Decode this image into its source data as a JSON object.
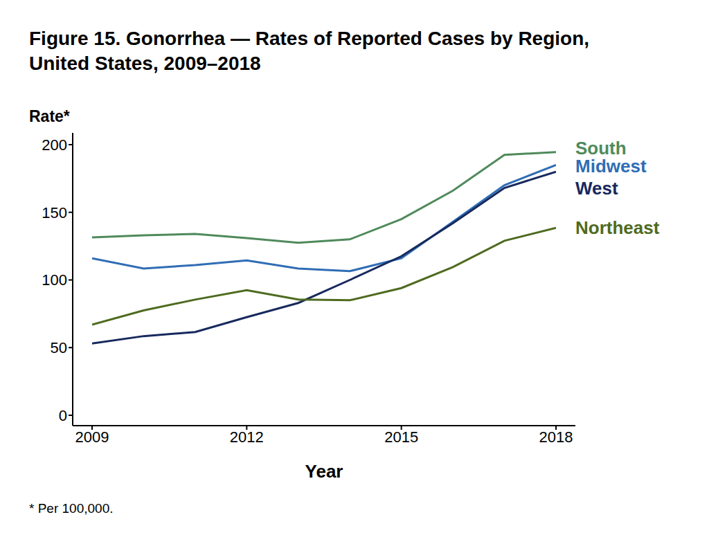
{
  "chart_data": {
    "type": "line",
    "title": "Figure 15. Gonorrhea — Rates of Reported Cases by Region, United States, 2009–2018",
    "x_label": "Year",
    "y_label": "Rate*",
    "footnote": "* Per 100,000.",
    "x": [
      2009,
      2010,
      2011,
      2012,
      2013,
      2014,
      2015,
      2016,
      2017,
      2018
    ],
    "xlim": [
      2009,
      2018
    ],
    "xticks": [
      2009,
      2012,
      2015,
      2018
    ],
    "ylim": [
      0,
      200
    ],
    "yticks": [
      0,
      50,
      100,
      150,
      200
    ],
    "grid": false,
    "series": [
      {
        "name": "South",
        "color": "#4f8a5b",
        "values": [
          131.5,
          133,
          134,
          131,
          127.5,
          130,
          145,
          166,
          192.5,
          194.5
        ]
      },
      {
        "name": "Midwest",
        "color": "#2f6db5",
        "values": [
          116,
          108.5,
          111,
          114.5,
          108.5,
          106.5,
          116,
          143,
          170,
          185
        ]
      },
      {
        "name": "West",
        "color": "#17295e",
        "values": [
          53,
          58.5,
          61.5,
          72.5,
          83,
          100,
          117.5,
          142,
          168,
          180
        ]
      },
      {
        "name": "Northeast",
        "color": "#4e6b1f",
        "values": [
          67,
          77.5,
          85.5,
          92.5,
          85.5,
          85,
          94,
          109.5,
          129,
          138.5
        ]
      }
    ]
  }
}
